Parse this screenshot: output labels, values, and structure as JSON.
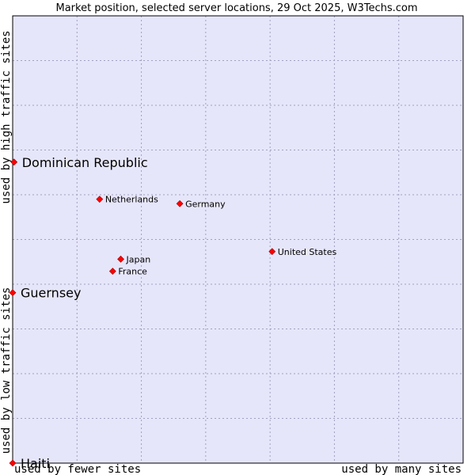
{
  "chart_data": {
    "type": "scatter",
    "title": "Market position, selected server locations, 29 Oct 2025, W3Techs.com",
    "xlabel_low": "used by fewer sites",
    "xlabel_high": "used by many sites",
    "ylabel_low": "used by low traffic sites",
    "ylabel_high": "used by high traffic sites",
    "xlim": [
      0,
      1
    ],
    "ylim": [
      0,
      1
    ],
    "grid": true,
    "colors": {
      "plot_bg": "#e6e6fa",
      "grid": "#a0a0c0",
      "point": "#ff0000",
      "border": "#000000"
    },
    "points": [
      {
        "name": "Dominican Republic",
        "x": 0.003,
        "y": 0.673,
        "size": "large"
      },
      {
        "name": "Netherlands",
        "x": 0.193,
        "y": 0.59,
        "size": "small"
      },
      {
        "name": "Germany",
        "x": 0.371,
        "y": 0.58,
        "size": "small"
      },
      {
        "name": "United States",
        "x": 0.576,
        "y": 0.473,
        "size": "small"
      },
      {
        "name": "Japan",
        "x": 0.24,
        "y": 0.456,
        "size": "small"
      },
      {
        "name": "France",
        "x": 0.222,
        "y": 0.429,
        "size": "small"
      },
      {
        "name": "Guernsey",
        "x": 0.0,
        "y": 0.381,
        "size": "large"
      },
      {
        "name": "Haiti",
        "x": 0.0,
        "y": 0.0,
        "size": "large"
      }
    ]
  }
}
